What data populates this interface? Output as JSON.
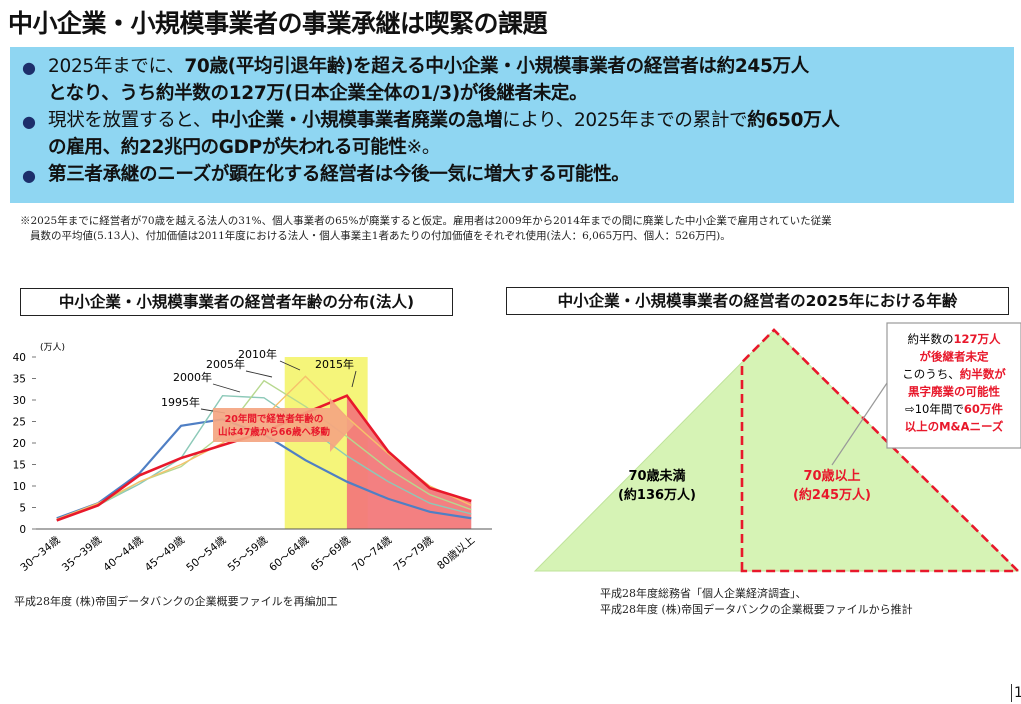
{
  "title": "中小企業・小規模事業者の事業承継は喫緊の課題",
  "summary": {
    "bullets": [
      {
        "lines": [
          [
            {
              "t": "2025年までに、",
              "b": false
            },
            {
              "t": "70歳(平均引退年齢)を超える中小企業・小規模事業者の経営者は約245万人",
              "b": true
            }
          ],
          [
            {
              "t": "となり、うち約半数の127万(日本企業全体の1/3)が後継者未定。",
              "b": true
            }
          ]
        ]
      },
      {
        "lines": [
          [
            {
              "t": "現状を放置すると、",
              "b": false
            },
            {
              "t": "中小企業・小規模事業者廃業の急増",
              "b": true
            },
            {
              "t": "により、2025年までの累計で",
              "b": false
            },
            {
              "t": "約650万人",
              "b": true
            }
          ],
          [
            {
              "t": "の雇用、約22兆円のGDPが失われる可能性",
              "b": true
            },
            {
              "t": "※。",
              "b": false
            }
          ]
        ]
      },
      {
        "lines": [
          [
            {
              "t": "第三者承継のニーズが顕在化する経営者は今後一気に増大する可能性。",
              "b": true
            }
          ]
        ]
      }
    ]
  },
  "footnote": {
    "line1": "※2025年までに経営者が70歳を越える法人の31%、個人事業者の65%が廃業すると仮定。雇用者は2009年から2014年までの間に廃業した中小企業で雇用されていた従業",
    "line2": "員数の平均値(5.13人)、付加価値は2011年度における法人・個人事業主1者あたりの付加価値をそれぞれ使用(法人：6,065万円、個人：526万円)。"
  },
  "left_panel": {
    "title": "中小企業・小規模事業者の経営者年齢の分布(法人)",
    "source": "平成28年度 (株)帝国データバンクの企業概要ファイルを再編加工"
  },
  "right_panel": {
    "title": "中小企業・小規模事業者の経営者の2025年における年齢",
    "source_line1": "平成28年度総務省「個人企業経済調査」、",
    "source_line2": "平成28年度 (株)帝国データバンクの企業概要ファイルから推計"
  },
  "chart_data": [
    {
      "type": "line",
      "title": "中小企業・小規模事業者の経営者年齢の分布(法人)",
      "ylabel": "(万人)",
      "ylim": [
        0,
        40
      ],
      "yticks": [
        "0",
        "5",
        "10",
        "15",
        "20",
        "25",
        "30",
        "35",
        "40"
      ],
      "categories": [
        "30～34歳",
        "35～39歳",
        "40～44歳",
        "45～49歳",
        "50～54歳",
        "55～59歳",
        "60～64歳",
        "65～69歳",
        "70～74歳",
        "75～79歳",
        "80歳以上"
      ],
      "series": [
        {
          "name": "1995年",
          "color": "#4f7fc4",
          "values": [
            2.5,
            6,
            13,
            24,
            25.5,
            22,
            16,
            11,
            7,
            4,
            2.5
          ]
        },
        {
          "name": "2000年",
          "color": "#8cc9b8",
          "values": [
            2,
            5.5,
            10.5,
            16.5,
            31,
            30.5,
            24,
            17,
            11,
            6,
            3.5
          ]
        },
        {
          "name": "2005年",
          "color": "#b7d88f",
          "values": [
            2.2,
            5.5,
            11,
            14.5,
            22,
            34.5,
            28.5,
            21.5,
            14,
            8,
            4.5
          ]
        },
        {
          "name": "2010年",
          "color": "#f5c26b",
          "values": [
            2.3,
            6,
            11,
            15,
            20,
            26,
            35.5,
            26,
            17.5,
            10,
            5.5
          ]
        },
        {
          "name": "2015年",
          "color": "#e8182b",
          "values": [
            2,
            5.5,
            12.5,
            16.5,
            19.5,
            22.5,
            27,
            31,
            18,
            9.5,
            6.5
          ]
        }
      ],
      "annotation": {
        "line1": "20年間で経営者年齢の",
        "line2": "山は47歳から66歳へ移動"
      },
      "highlight_yellow_color": "#f5f57a",
      "highlight_red_color": "#f2797a"
    },
    {
      "type": "area",
      "title": "中小企業・小規模事業者の経営者の2025年における年齢",
      "segments": [
        {
          "label": "70歳未満",
          "value_label": "(約136万人)",
          "value": 136
        },
        {
          "label": "70歳以上",
          "value_label": "(約245万人)",
          "value": 245
        }
      ],
      "callout": {
        "l1a": "約半数の",
        "l1b": "127万人",
        "l2": "が後継者未定",
        "l3a": "このうち、",
        "l3b": "約半数が",
        "l4": "黒字廃業の可能性",
        "l5a": "⇨10年間で",
        "l5b": "60万件",
        "l6": "以上のM&Aニーズ"
      },
      "fill_color": "#d6f3b5",
      "accent_color": "#e8182b"
    }
  ],
  "page_number": "1"
}
